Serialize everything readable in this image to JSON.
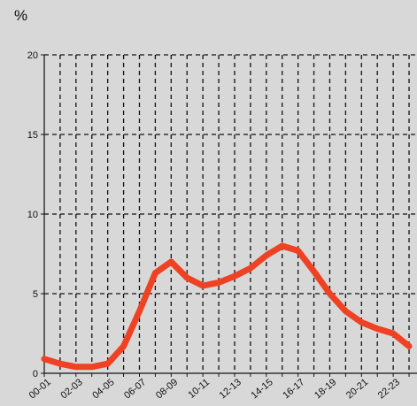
{
  "chart_data": {
    "type": "line",
    "unit_label": "%",
    "xlabel": "",
    "ylabel": "",
    "ylim": [
      0,
      20
    ],
    "yticks": [
      0,
      5,
      10,
      15,
      20
    ],
    "grid": {
      "vertical": true,
      "horizontal": true,
      "style": "dashed"
    },
    "x_tick_labels": [
      "00-01",
      "02-03",
      "04-05",
      "06-07",
      "08-09",
      "10-11",
      "12-13",
      "14-15",
      "16-17",
      "18-19",
      "20-21",
      "22-23"
    ],
    "x": [
      "00-01",
      "01-02",
      "02-03",
      "03-04",
      "04-05",
      "05-06",
      "06-07",
      "07-08",
      "08-09",
      "09-10",
      "10-11",
      "11-12",
      "12-13",
      "13-14",
      "14-15",
      "15-16",
      "16-17",
      "17-18",
      "18-19",
      "19-20",
      "20-21",
      "21-22",
      "22-23",
      "23-24"
    ],
    "series": [
      {
        "values": [
          0.9,
          0.6,
          0.4,
          0.4,
          0.6,
          1.7,
          3.9,
          6.3,
          7.0,
          6.0,
          5.5,
          5.7,
          6.1,
          6.6,
          7.4,
          8.0,
          7.7,
          6.4,
          5.0,
          3.9,
          3.2,
          2.8,
          2.5,
          1.7
        ],
        "color": "#ef4123"
      }
    ],
    "colors": {
      "background": "#d8d8d8",
      "line": "#ef4123",
      "grid": "#111111",
      "axis": "#111111"
    }
  }
}
